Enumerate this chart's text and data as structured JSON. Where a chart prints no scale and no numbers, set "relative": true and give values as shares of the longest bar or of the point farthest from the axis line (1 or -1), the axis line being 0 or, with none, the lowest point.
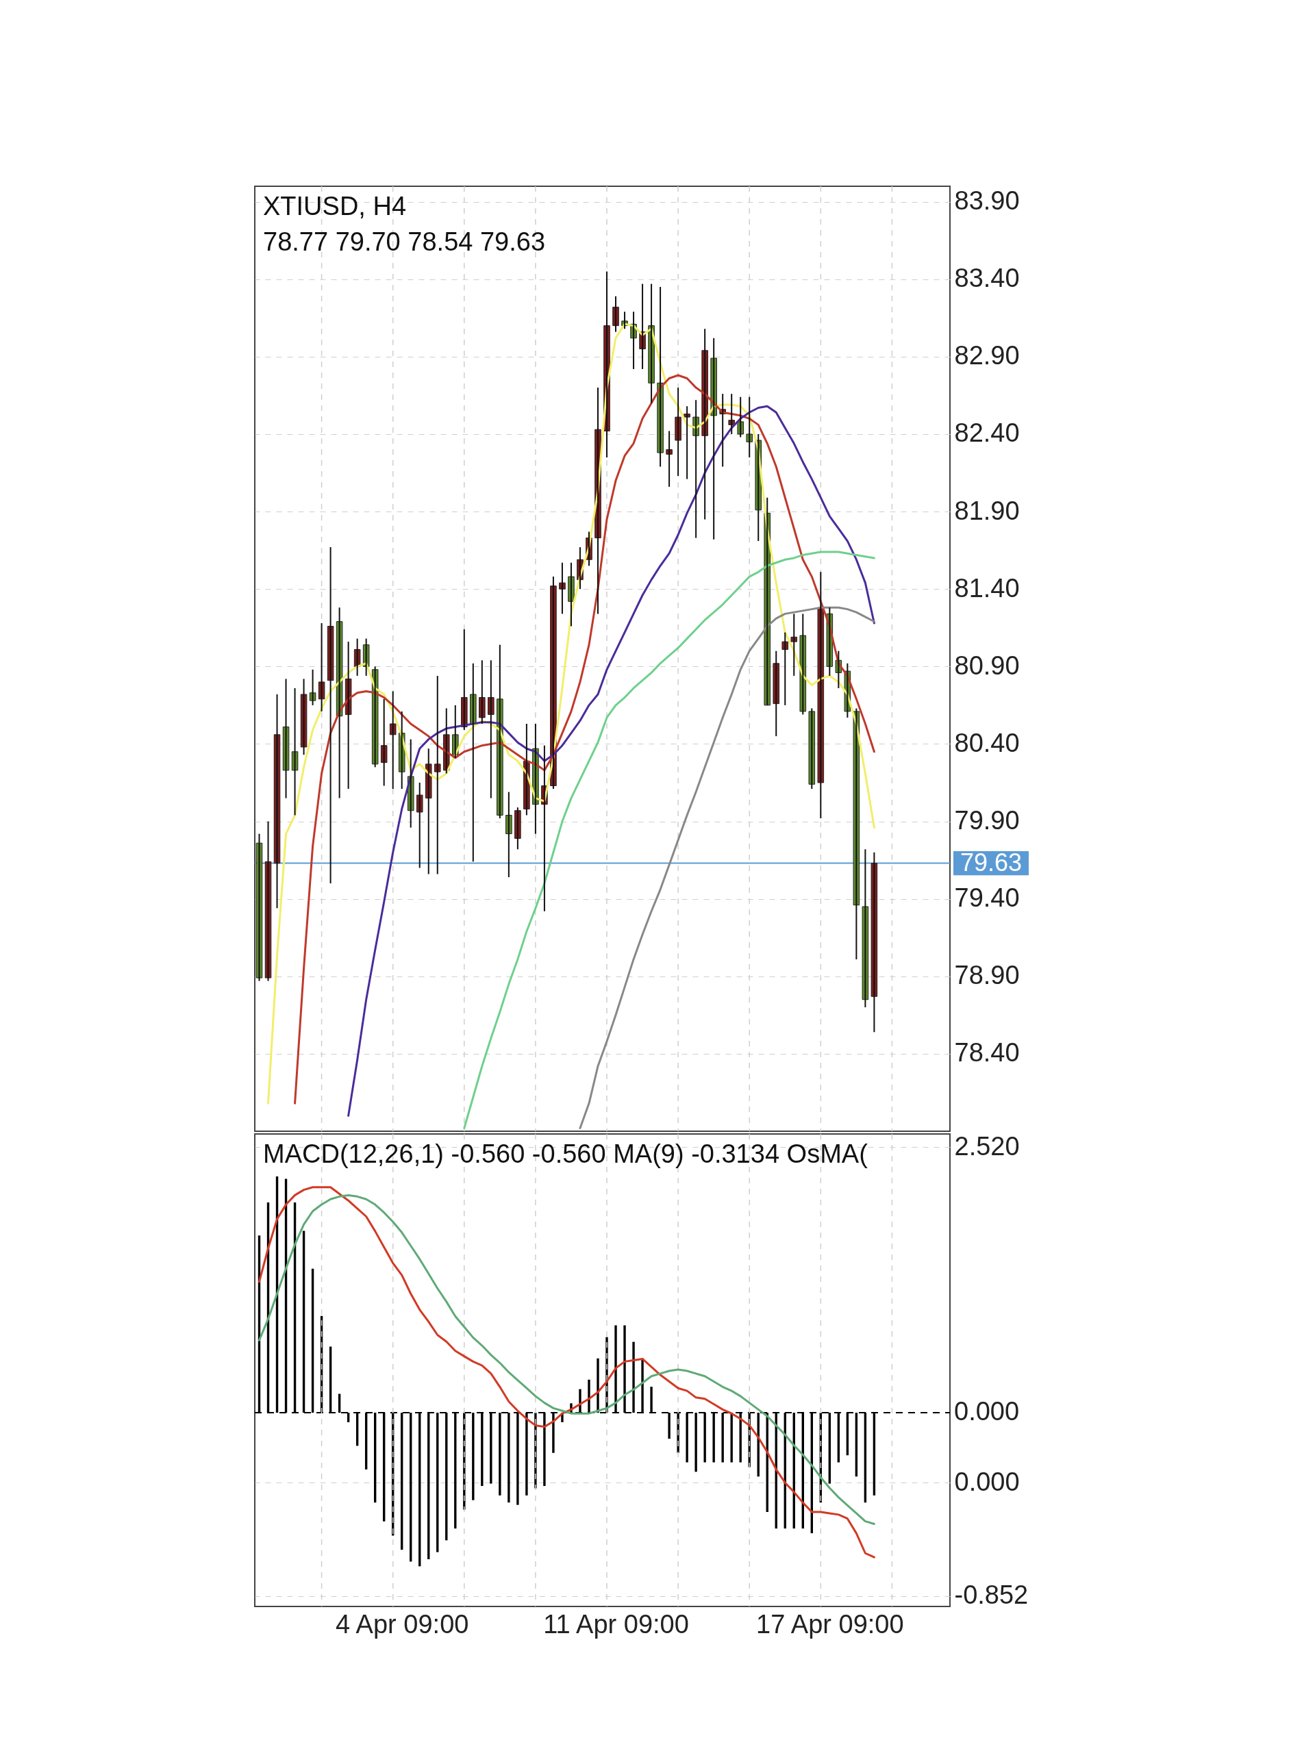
{
  "chart_data": [
    {
      "type": "candlestick",
      "title": "XTIUSD, H4",
      "subtitle": "78.77 79.70 78.54 79.63",
      "categories": [
        null,
        null,
        null,
        null,
        null,
        null,
        null,
        null,
        null,
        null,
        null,
        null,
        null,
        null,
        null,
        null,
        null,
        null,
        null,
        null,
        null,
        null,
        null,
        null,
        null,
        null,
        null,
        null,
        null,
        null,
        null,
        null,
        null,
        null,
        null,
        null,
        null,
        null,
        null,
        null,
        null,
        null,
        null,
        null,
        null,
        null,
        null,
        null,
        null,
        null,
        null,
        null,
        null,
        null,
        null,
        null,
        null,
        null,
        null,
        null,
        null,
        null,
        null,
        null,
        null,
        null,
        null,
        null,
        null,
        null,
        null,
        null,
        null,
        null,
        null,
        null,
        null,
        null
      ],
      "ohlc": [
        [
          79.76,
          79.82,
          78.87,
          78.89
        ],
        [
          78.89,
          79.9,
          78.87,
          79.64
        ],
        [
          79.63,
          80.72,
          79.34,
          80.46
        ],
        [
          80.51,
          80.82,
          80.05,
          80.23
        ],
        [
          80.35,
          80.76,
          79.94,
          80.23
        ],
        [
          80.38,
          80.82,
          80.33,
          80.72
        ],
        [
          80.73,
          80.88,
          80.65,
          80.68
        ],
        [
          80.69,
          81.18,
          80.61,
          80.8
        ],
        [
          80.81,
          81.67,
          79.5,
          81.16
        ],
        [
          81.19,
          81.28,
          80.05,
          80.58
        ],
        [
          80.59,
          81.06,
          80.11,
          80.82
        ],
        [
          80.9,
          81.08,
          80.84,
          81.01
        ],
        [
          81.04,
          81.08,
          80.84,
          80.9
        ],
        [
          80.88,
          80.9,
          80.25,
          80.27
        ],
        [
          80.28,
          80.69,
          80.13,
          80.39
        ],
        [
          80.46,
          80.74,
          80.11,
          80.53
        ],
        [
          80.47,
          80.61,
          80.11,
          80.22
        ],
        [
          80.19,
          80.43,
          79.86,
          79.97
        ],
        [
          79.96,
          80.15,
          79.6,
          80.07
        ],
        [
          80.05,
          80.37,
          79.56,
          80.27
        ],
        [
          80.22,
          80.84,
          79.56,
          80.27
        ],
        [
          80.23,
          80.63,
          80.21,
          80.46
        ],
        [
          80.46,
          80.65,
          80.31,
          80.33
        ],
        [
          80.51,
          81.14,
          80.49,
          80.7
        ],
        [
          80.72,
          80.92,
          79.64,
          80.53
        ],
        [
          80.57,
          80.94,
          80.53,
          80.7
        ],
        [
          80.59,
          80.94,
          80.05,
          80.7
        ],
        [
          80.69,
          81.04,
          79.92,
          79.94
        ],
        [
          79.94,
          80.09,
          79.54,
          79.82
        ],
        [
          79.79,
          79.99,
          79.72,
          79.97
        ],
        [
          79.98,
          80.53,
          79.94,
          80.29
        ],
        [
          80.37,
          80.53,
          79.82,
          80.01
        ],
        [
          80.01,
          80.39,
          79.32,
          80.13
        ],
        [
          80.13,
          81.48,
          80.11,
          81.42
        ],
        [
          81.4,
          81.57,
          81.24,
          81.44
        ],
        [
          81.48,
          81.57,
          81.16,
          81.32
        ],
        [
          81.46,
          81.67,
          81.4,
          81.59
        ],
        [
          81.59,
          81.77,
          81.55,
          81.73
        ],
        [
          81.73,
          82.7,
          81.24,
          82.43
        ],
        [
          82.42,
          83.45,
          82.25,
          83.1
        ],
        [
          83.1,
          83.29,
          83.06,
          83.22
        ],
        [
          83.13,
          83.19,
          83.08,
          83.1
        ],
        [
          83.11,
          83.19,
          82.82,
          83.02
        ],
        [
          82.95,
          83.37,
          82.82,
          83.06
        ],
        [
          83.1,
          83.37,
          82.6,
          82.73
        ],
        [
          82.73,
          83.35,
          82.19,
          82.28
        ],
        [
          82.27,
          82.42,
          82.06,
          82.3
        ],
        [
          82.36,
          82.7,
          82.13,
          82.51
        ],
        [
          82.51,
          82.58,
          82.11,
          82.53
        ],
        [
          82.51,
          82.62,
          81.73,
          82.39
        ],
        [
          82.39,
          83.08,
          81.85,
          82.94
        ],
        [
          82.89,
          83.02,
          81.72,
          82.52
        ],
        [
          82.53,
          82.66,
          82.19,
          82.56
        ],
        [
          82.46,
          82.66,
          82.4,
          82.49
        ],
        [
          82.48,
          82.64,
          82.38,
          82.4
        ],
        [
          82.4,
          82.64,
          82.25,
          82.35
        ],
        [
          82.36,
          82.4,
          81.71,
          81.91
        ],
        [
          81.89,
          81.99,
          80.65,
          80.65
        ],
        [
          80.66,
          81.0,
          80.45,
          80.92
        ],
        [
          81.01,
          81.12,
          80.65,
          81.06
        ],
        [
          81.06,
          81.24,
          80.84,
          81.09
        ],
        [
          81.1,
          81.24,
          80.59,
          80.61
        ],
        [
          80.61,
          80.63,
          80.11,
          80.14
        ],
        [
          80.15,
          81.51,
          79.92,
          81.28
        ],
        [
          81.24,
          81.28,
          80.84,
          80.9
        ],
        [
          80.94,
          81.0,
          80.76,
          80.86
        ],
        [
          80.87,
          80.92,
          80.57,
          80.61
        ],
        [
          80.61,
          80.63,
          79.01,
          79.36
        ],
        [
          79.35,
          79.72,
          78.7,
          78.75
        ],
        [
          78.77,
          79.7,
          78.54,
          79.63
        ],
        null,
        null,
        null,
        null,
        null,
        null,
        null,
        null
      ],
      "colors": [
        "#5d8a2b",
        "#7b1e1e",
        "#7b1e1e",
        "#5d8a2b",
        "#5d8a2b",
        "#7b1e1e",
        "#5d8a2b",
        "#7b1e1e",
        "#7b1e1e",
        "#5d8a2b",
        "#7b1e1e",
        "#7b1e1e",
        "#5d8a2b",
        "#5d8a2b",
        "#7b1e1e",
        "#7b1e1e",
        "#5d8a2b",
        "#5d8a2b",
        "#7b1e1e",
        "#7b1e1e",
        "#7b1e1e",
        "#7b1e1e",
        "#5d8a2b",
        "#7b1e1e",
        "#5d8a2b",
        "#7b1e1e",
        "#7b1e1e",
        "#5d8a2b",
        "#5d8a2b",
        "#7b1e1e",
        "#7b1e1e",
        "#5d8a2b",
        "#7b1e1e",
        "#7b1e1e",
        "#7b1e1e",
        "#5d8a2b",
        "#7b1e1e",
        "#7b1e1e",
        "#7b1e1e",
        "#7b1e1e",
        "#7b1e1e",
        "#5d8a2b",
        "#5d8a2b",
        "#7b1e1e",
        "#5d8a2b",
        "#5d8a2b",
        "#7b1e1e",
        "#7b1e1e",
        "#7b1e1e",
        "#5d8a2b",
        "#7b1e1e",
        "#5d8a2b",
        "#7b1e1e",
        "#7b1e1e",
        "#5d8a2b",
        "#5d8a2b",
        "#5d8a2b",
        "#5d8a2b",
        "#7b1e1e",
        "#7b1e1e",
        "#7b1e1e",
        "#5d8a2b",
        "#5d8a2b",
        "#7b1e1e",
        "#5d8a2b",
        "#5d8a2b",
        "#5d8a2b",
        "#5d8a2b",
        "#5d8a2b",
        "#7b1e1e",
        null,
        null,
        null,
        null,
        null,
        null,
        null,
        null
      ],
      "series": [
        {
          "type": "line",
          "color": "#f2ee6a",
          "values": [
            null,
            78.08,
            79.03,
            79.82,
            79.94,
            80.25,
            80.49,
            80.63,
            80.74,
            80.8,
            80.86,
            80.9,
            80.92,
            80.76,
            80.72,
            80.61,
            80.45,
            80.23,
            80.27,
            80.21,
            80.17,
            80.21,
            80.33,
            80.45,
            80.51,
            80.55,
            80.53,
            80.49,
            80.33,
            80.29,
            80.21,
            80.05,
            80.03,
            80.31,
            80.76,
            81.24,
            81.48,
            81.67,
            82.03,
            82.7,
            83.02,
            83.11,
            83.1,
            83.04,
            83.08,
            82.86,
            82.66,
            82.58,
            82.46,
            82.44,
            82.48,
            82.58,
            82.59,
            82.59,
            82.58,
            82.52,
            82.3,
            81.79,
            81.44,
            81.12,
            81.0,
            80.84,
            80.78,
            80.82,
            80.84,
            80.8,
            80.72,
            80.53,
            80.21,
            79.86,
            null,
            null,
            null,
            null,
            null,
            null,
            null,
            null
          ]
        },
        {
          "type": "line",
          "color": "#c0392b",
          "values": [
            null,
            null,
            null,
            null,
            78.08,
            78.95,
            79.74,
            80.21,
            80.47,
            80.61,
            80.69,
            80.73,
            80.74,
            80.73,
            80.7,
            80.65,
            80.59,
            80.53,
            80.49,
            80.45,
            80.39,
            80.35,
            80.31,
            80.35,
            80.37,
            80.39,
            80.4,
            80.41,
            80.37,
            80.33,
            80.29,
            80.27,
            80.23,
            80.33,
            80.47,
            80.61,
            80.8,
            81.04,
            81.4,
            81.85,
            82.1,
            82.26,
            82.34,
            82.5,
            82.6,
            82.7,
            82.76,
            82.78,
            82.76,
            82.7,
            82.66,
            82.6,
            82.54,
            82.53,
            82.52,
            82.5,
            82.46,
            82.34,
            82.19,
            81.99,
            81.79,
            81.59,
            81.48,
            81.32,
            81.16,
            80.92,
            80.84,
            80.69,
            80.53,
            80.35,
            null,
            null,
            null,
            null,
            null,
            null,
            null,
            null
          ]
        },
        {
          "type": "line",
          "color": "#4a2c9b",
          "values": [
            null,
            null,
            null,
            null,
            null,
            null,
            null,
            null,
            null,
            null,
            78.0,
            78.36,
            78.75,
            79.07,
            79.38,
            79.7,
            79.98,
            80.19,
            80.37,
            80.43,
            80.47,
            80.5,
            80.51,
            80.52,
            80.53,
            80.54,
            80.54,
            80.53,
            80.47,
            80.41,
            80.37,
            80.35,
            80.29,
            80.33,
            80.39,
            80.47,
            80.55,
            80.65,
            80.72,
            80.88,
            81.0,
            81.12,
            81.24,
            81.36,
            81.46,
            81.55,
            81.63,
            81.75,
            81.89,
            82.01,
            82.15,
            82.26,
            82.36,
            82.44,
            82.5,
            82.54,
            82.57,
            82.58,
            82.54,
            82.44,
            82.34,
            82.22,
            82.11,
            81.99,
            81.87,
            81.79,
            81.71,
            81.59,
            81.44,
            81.18,
            null,
            null,
            null,
            null,
            null,
            null,
            null,
            null
          ]
        },
        {
          "type": "line",
          "color": "#6fd08c",
          "values": [
            null,
            null,
            null,
            null,
            null,
            null,
            null,
            null,
            null,
            null,
            null,
            null,
            null,
            null,
            null,
            null,
            null,
            null,
            null,
            null,
            null,
            null,
            null,
            77.92,
            78.12,
            78.32,
            78.5,
            78.67,
            78.85,
            79.01,
            79.19,
            79.34,
            79.5,
            79.7,
            79.9,
            80.05,
            80.17,
            80.29,
            80.41,
            80.57,
            80.65,
            80.7,
            80.76,
            80.81,
            80.86,
            80.92,
            80.97,
            81.02,
            81.08,
            81.14,
            81.2,
            81.25,
            81.3,
            81.36,
            81.42,
            81.48,
            81.51,
            81.55,
            81.57,
            81.59,
            81.6,
            81.62,
            81.63,
            81.64,
            81.64,
            81.64,
            81.63,
            81.62,
            81.61,
            81.6,
            null,
            null,
            null,
            null,
            null,
            null,
            null,
            null
          ]
        },
        {
          "type": "line",
          "color": "#888888",
          "values": [
            null,
            null,
            null,
            null,
            null,
            null,
            null,
            null,
            null,
            null,
            null,
            null,
            null,
            null,
            null,
            null,
            null,
            null,
            null,
            null,
            null,
            null,
            null,
            null,
            null,
            null,
            null,
            null,
            null,
            null,
            null,
            null,
            null,
            null,
            null,
            null,
            77.92,
            78.08,
            78.32,
            78.48,
            78.65,
            78.83,
            79.01,
            79.17,
            79.32,
            79.46,
            79.62,
            79.78,
            79.94,
            80.09,
            80.25,
            80.41,
            80.57,
            80.72,
            80.88,
            81.0,
            81.08,
            81.16,
            81.21,
            81.24,
            81.25,
            81.26,
            81.27,
            81.28,
            81.28,
            81.28,
            81.27,
            81.25,
            81.22,
            81.19,
            null,
            null,
            null,
            null,
            null,
            null,
            null,
            null
          ]
        }
      ],
      "ylim": [
        77.9,
        84.0
      ],
      "yticks": [
        {
          "value": 83.9,
          "label": "83.90"
        },
        {
          "value": 83.4,
          "label": "83.40"
        },
        {
          "value": 82.9,
          "label": "82.90"
        },
        {
          "value": 82.4,
          "label": "82.40"
        },
        {
          "value": 81.9,
          "label": "81.90"
        },
        {
          "value": 81.4,
          "label": "81.40"
        },
        {
          "value": 80.9,
          "label": "80.90"
        },
        {
          "value": 80.4,
          "label": "80.40"
        },
        {
          "value": 79.9,
          "label": "79.90"
        },
        {
          "value": 79.4,
          "label": "79.40"
        },
        {
          "value": 78.9,
          "label": "78.90"
        },
        {
          "value": 78.4,
          "label": "78.40"
        }
      ],
      "ref_lines": [
        {
          "axis": "y",
          "value": 79.63,
          "label": "79.63",
          "color": "#5b9bd5",
          "line_style": "solid"
        }
      ],
      "grid": true,
      "tick_labels": "y"
    },
    {
      "type": "line",
      "title": "MACD(12,26,1) -0.560 -0.560 MA(9) -0.3134 OsMA(",
      "categories": [
        null,
        null,
        null,
        null,
        null,
        null,
        null,
        null,
        null,
        null,
        null,
        null,
        null,
        null,
        null,
        null,
        "4 Apr 09:00",
        null,
        null,
        null,
        null,
        null,
        null,
        null,
        null,
        null,
        null,
        null,
        null,
        null,
        null,
        null,
        null,
        null,
        null,
        null,
        null,
        null,
        null,
        null,
        "11 Apr 09:00",
        null,
        null,
        null,
        null,
        null,
        null,
        null,
        null,
        null,
        null,
        null,
        null,
        null,
        null,
        null,
        null,
        null,
        null,
        null,
        null,
        null,
        null,
        null,
        "17 Apr 09:00",
        null,
        null,
        null,
        null,
        null,
        null,
        null,
        null,
        null,
        null,
        null,
        null,
        null
      ],
      "series": [
        {
          "color": "#d23a25",
          "values": [
            1.51,
            1.76,
            1.98,
            2.09,
            2.16,
            2.2,
            2.22,
            2.22,
            2.22,
            2.17,
            2.12,
            2.06,
            2.0,
            1.89,
            1.77,
            1.65,
            1.56,
            1.42,
            1.3,
            1.21,
            1.11,
            1.06,
            0.99,
            0.95,
            0.91,
            0.88,
            0.82,
            0.72,
            0.61,
            0.54,
            0.48,
            0.43,
            0.42,
            0.46,
            0.52,
            0.55,
            0.59,
            0.63,
            0.68,
            0.76,
            0.86,
            0.91,
            0.92,
            0.93,
            0.87,
            0.81,
            0.76,
            0.71,
            0.69,
            0.64,
            0.63,
            0.59,
            0.55,
            0.52,
            0.48,
            0.43,
            0.34,
            0.23,
            0.1,
            0.0,
            -0.07,
            -0.15,
            -0.22,
            -0.22,
            -0.23,
            -0.24,
            -0.27,
            -0.38,
            -0.53,
            -0.56,
            null,
            null,
            null,
            null,
            null,
            null,
            null,
            null
          ]
        },
        {
          "color": "#5faa76",
          "values": [
            1.07,
            1.23,
            1.42,
            1.61,
            1.79,
            1.94,
            2.04,
            2.09,
            2.13,
            2.15,
            2.16,
            2.15,
            2.13,
            2.09,
            2.03,
            1.96,
            1.88,
            1.78,
            1.68,
            1.57,
            1.46,
            1.36,
            1.25,
            1.17,
            1.09,
            1.03,
            0.96,
            0.9,
            0.83,
            0.77,
            0.71,
            0.65,
            0.6,
            0.56,
            0.54,
            0.52,
            0.52,
            0.52,
            0.54,
            0.56,
            0.6,
            0.66,
            0.7,
            0.75,
            0.8,
            0.82,
            0.84,
            0.85,
            0.84,
            0.82,
            0.8,
            0.76,
            0.72,
            0.69,
            0.65,
            0.6,
            0.55,
            0.5,
            0.43,
            0.36,
            0.28,
            0.21,
            0.13,
            0.04,
            -0.04,
            -0.11,
            -0.17,
            -0.23,
            -0.29,
            -0.31,
            null,
            null,
            null,
            null,
            null,
            null,
            null,
            null
          ]
        }
      ],
      "ylim": [
        -0.93,
        2.62
      ],
      "yticks": [
        {
          "value": 2.52,
          "label": "2.520"
        },
        {
          "value": 0,
          "label": "0.000"
        },
        {
          "value": -0.852,
          "label": "-0.852"
        }
      ],
      "grid": true
    },
    {
      "type": "bar",
      "relative": true,
      "color": "#000000",
      "tick_labels": false,
      "categories": [
        null,
        null,
        null,
        null,
        null,
        null,
        null,
        null,
        null,
        null,
        null,
        null,
        null,
        null,
        null,
        null,
        null,
        null,
        null,
        null,
        null,
        null,
        null,
        null,
        null,
        null,
        null,
        null,
        null,
        null,
        null,
        null,
        null,
        null,
        null,
        null,
        null,
        null,
        null,
        null,
        null,
        null,
        null,
        null,
        null,
        null,
        null,
        null,
        null,
        null,
        null,
        null,
        null,
        null,
        null,
        null,
        null,
        null,
        null,
        null,
        null,
        null,
        null,
        null,
        null,
        null,
        null,
        null,
        null,
        null,
        null,
        null,
        null,
        null,
        null,
        null,
        null,
        null
      ],
      "values": [
        0.75,
        0.89,
        1,
        0.99,
        0.89,
        0.77,
        0.61,
        0.41,
        0.28,
        0.08,
        -0.04,
        -0.14,
        -0.24,
        -0.38,
        -0.46,
        -0.52,
        -0.58,
        -0.63,
        -0.65,
        -0.62,
        -0.59,
        -0.54,
        -0.49,
        -0.41,
        -0.37,
        -0.31,
        -0.3,
        -0.35,
        -0.38,
        -0.39,
        -0.35,
        -0.32,
        -0.31,
        -0.17,
        -0.04,
        0.04,
        0.1,
        0.14,
        0.23,
        0.32,
        0.37,
        0.37,
        0.3,
        0.23,
        0.11,
        0,
        -0.11,
        -0.17,
        -0.21,
        -0.25,
        -0.21,
        -0.21,
        -0.21,
        -0.21,
        -0.21,
        -0.23,
        -0.27,
        -0.42,
        -0.49,
        -0.49,
        -0.49,
        -0.49,
        -0.51,
        -0.38,
        -0.3,
        -0.21,
        -0.18,
        -0.27,
        -0.38,
        -0.35,
        null,
        null,
        null,
        null,
        null,
        null,
        null,
        null
      ],
      "ref_lines": [
        {
          "axis": "y",
          "value": 0,
          "label": "0.000",
          "color": "#000000",
          "line_style": "dashed"
        }
      ]
    }
  ]
}
